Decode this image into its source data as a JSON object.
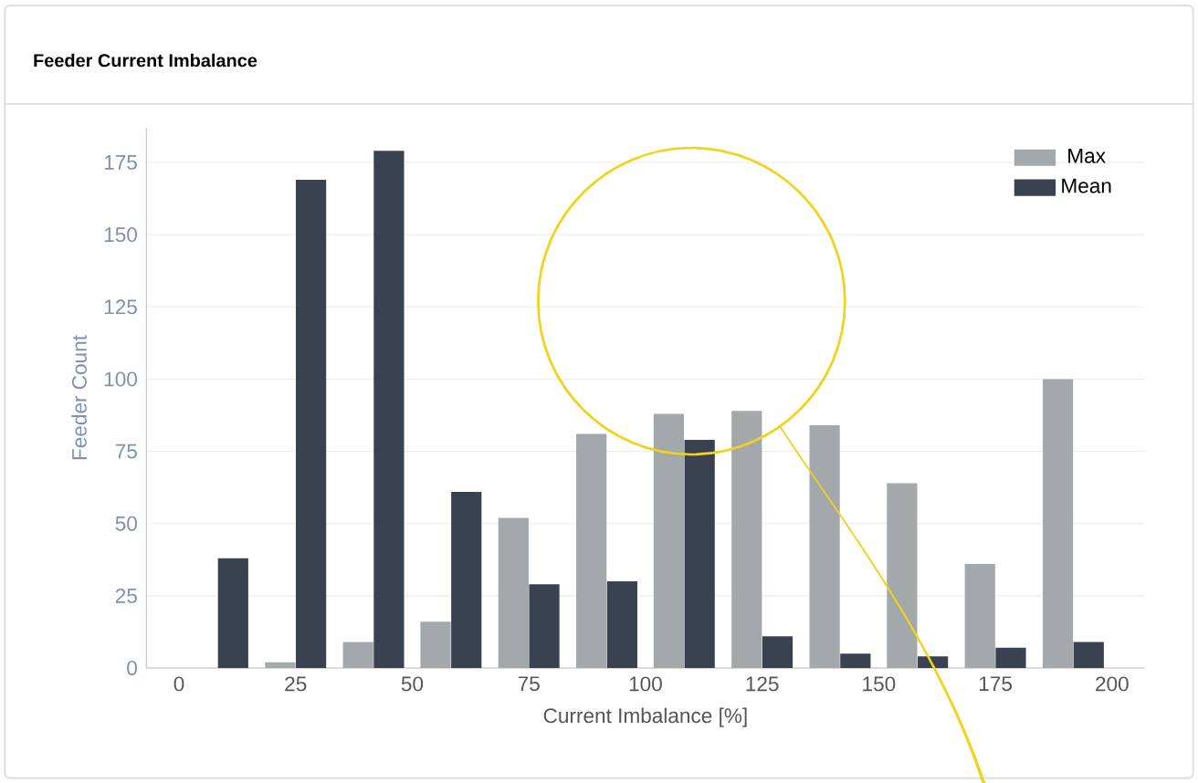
{
  "chart_data": {
    "type": "bar",
    "title": "Feeder Current Imbalance",
    "xlabel": "Current Imbalance [%]",
    "ylabel": "Feeder Count",
    "x": [
      8.3,
      25,
      41.7,
      58.3,
      75,
      91.7,
      108.3,
      125,
      141.7,
      158.3,
      175,
      191.7
    ],
    "series": [
      {
        "name": "Max",
        "color": "#a3a8ab",
        "values": [
          0,
          2,
          9,
          16,
          52,
          81,
          88,
          89,
          84,
          64,
          36,
          100
        ]
      },
      {
        "name": "Mean",
        "color": "#3a4150",
        "values": [
          38,
          169,
          179,
          61,
          29,
          30,
          79,
          11,
          5,
          4,
          7,
          9
        ]
      }
    ],
    "xlim": [
      -7,
      207
    ],
    "ylim": [
      0,
      187
    ],
    "xticks": [
      0,
      25,
      50,
      75,
      100,
      125,
      150,
      175,
      200
    ],
    "yticks": [
      0,
      25,
      50,
      75,
      100,
      125,
      150,
      175
    ],
    "grid": "y",
    "legend": "top right"
  }
}
